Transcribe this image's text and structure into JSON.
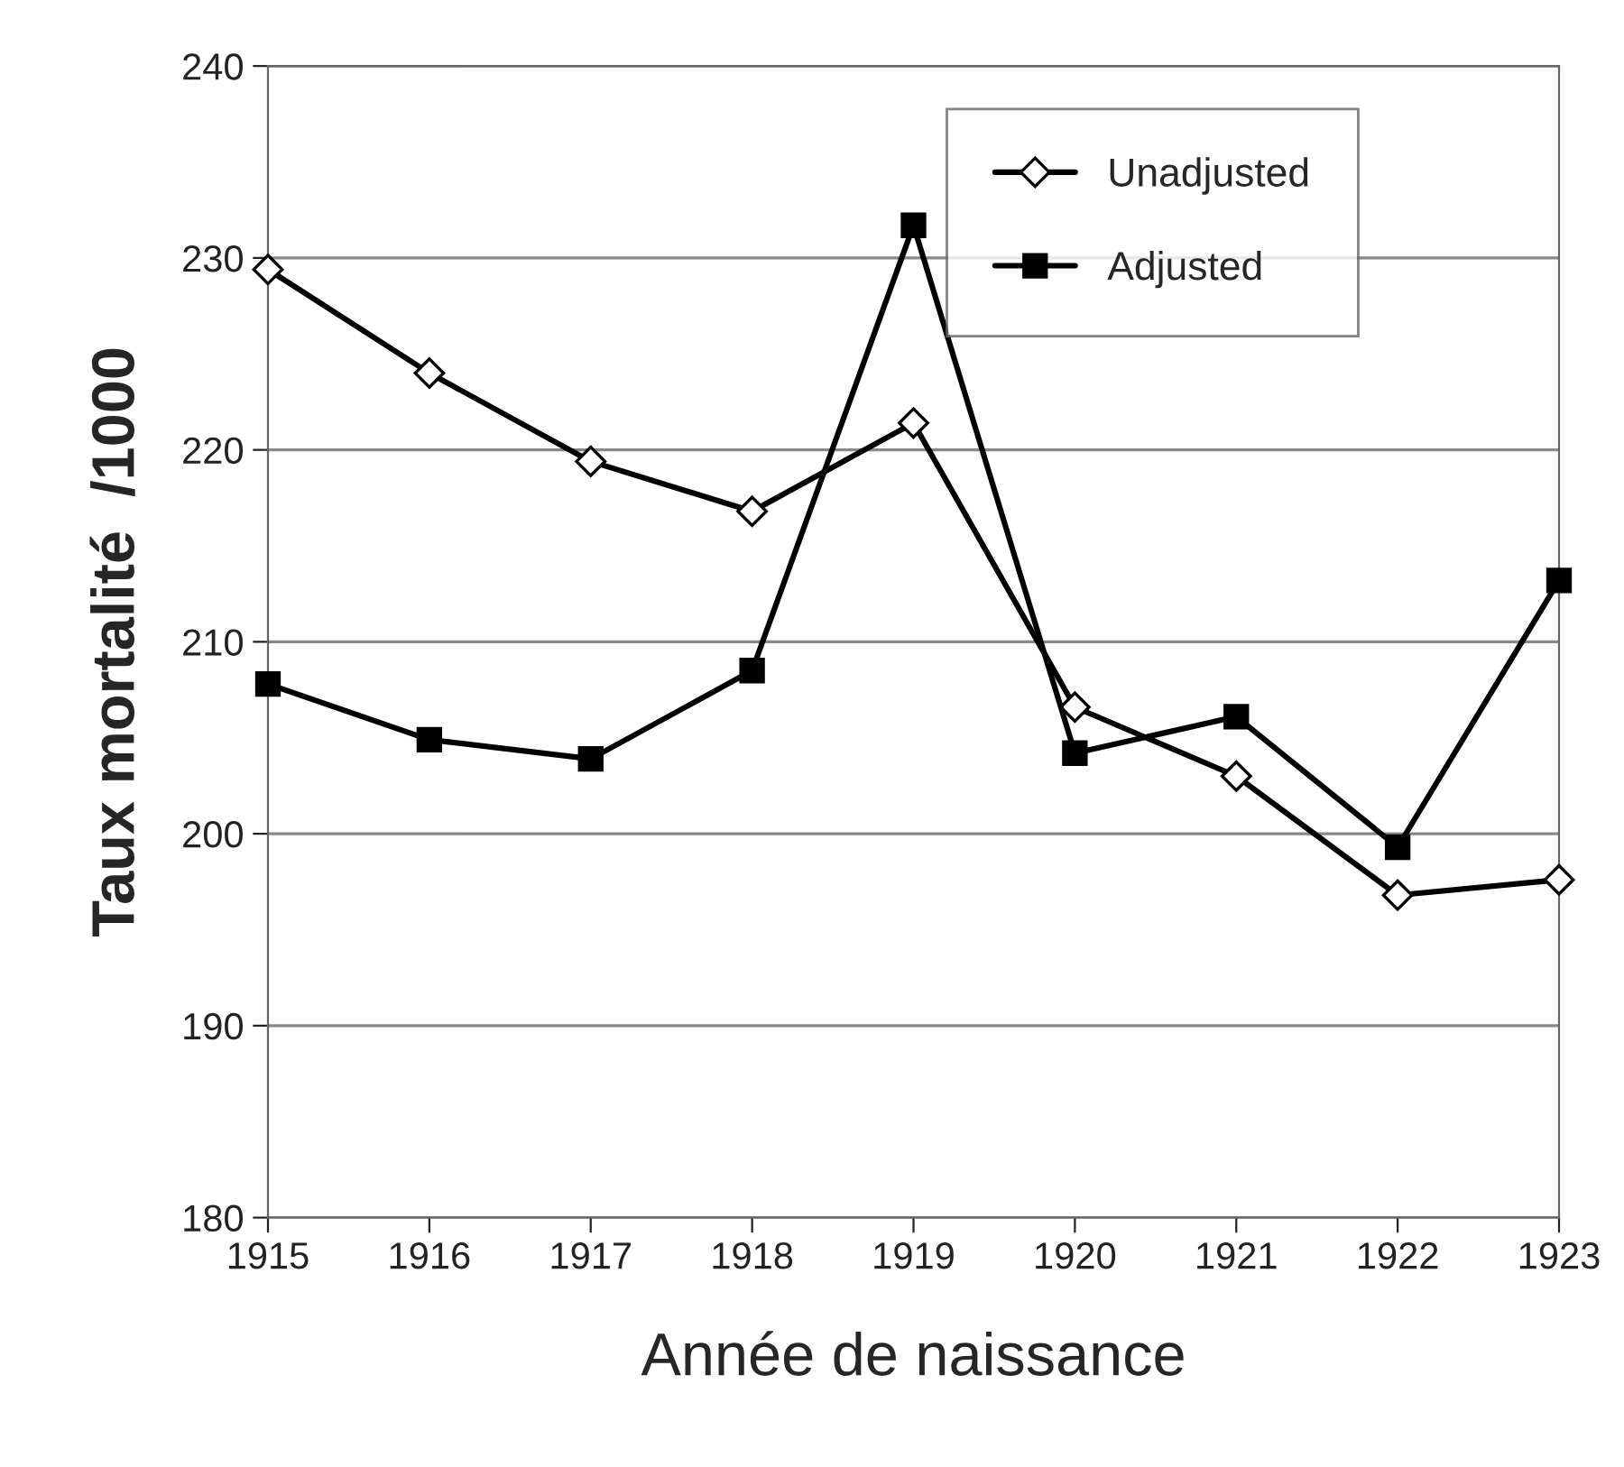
{
  "chart_data": {
    "type": "line",
    "xlabel": "Année de naissance",
    "ylabel": "Taux mortalité  /1000",
    "categories": [
      "1915",
      "1916",
      "1917",
      "1918",
      "1919",
      "1920",
      "1921",
      "1922",
      "1923"
    ],
    "series": [
      {
        "name": "Unadjusted",
        "color": "#000000",
        "marker": "diamond",
        "values": [
          229.4,
          224.0,
          219.4,
          216.8,
          221.4,
          206.6,
          203.0,
          196.8,
          197.6
        ]
      },
      {
        "name": "Adjusted",
        "color": "#000000",
        "marker": "square",
        "values": [
          207.8,
          204.9,
          203.9,
          208.5,
          231.7,
          204.2,
          206.1,
          199.3,
          213.2
        ]
      }
    ],
    "ylim": [
      180,
      240
    ],
    "yticks": [
      180,
      190,
      200,
      210,
      220,
      230,
      240
    ],
    "grid": "y",
    "legend": "top right",
    "line_style": "solid"
  }
}
